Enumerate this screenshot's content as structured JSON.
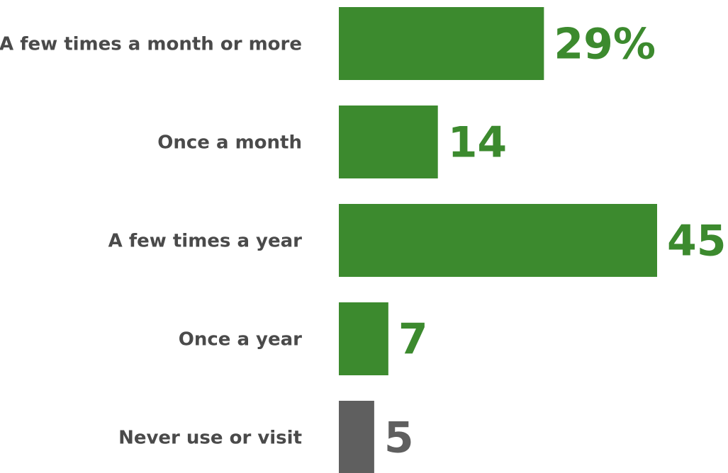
{
  "chart_data": {
    "type": "bar",
    "orientation": "horizontal",
    "categories": [
      "A few times a month or more",
      "Once a month",
      "A few times a year",
      "Once a year",
      "Never use or visit"
    ],
    "values": [
      29,
      14,
      45,
      7,
      5
    ],
    "value_labels": [
      "29%",
      "14",
      "45",
      "7",
      "5"
    ],
    "bar_colors": [
      "#3c8a2e",
      "#3c8a2e",
      "#3c8a2e",
      "#3c8a2e",
      "#5f5f5f"
    ],
    "label_colors": [
      "#3c8a2e",
      "#3c8a2e",
      "#3c8a2e",
      "#3c8a2e",
      "#5f5f5f"
    ],
    "grid": false,
    "xlim": [
      0,
      45
    ]
  }
}
